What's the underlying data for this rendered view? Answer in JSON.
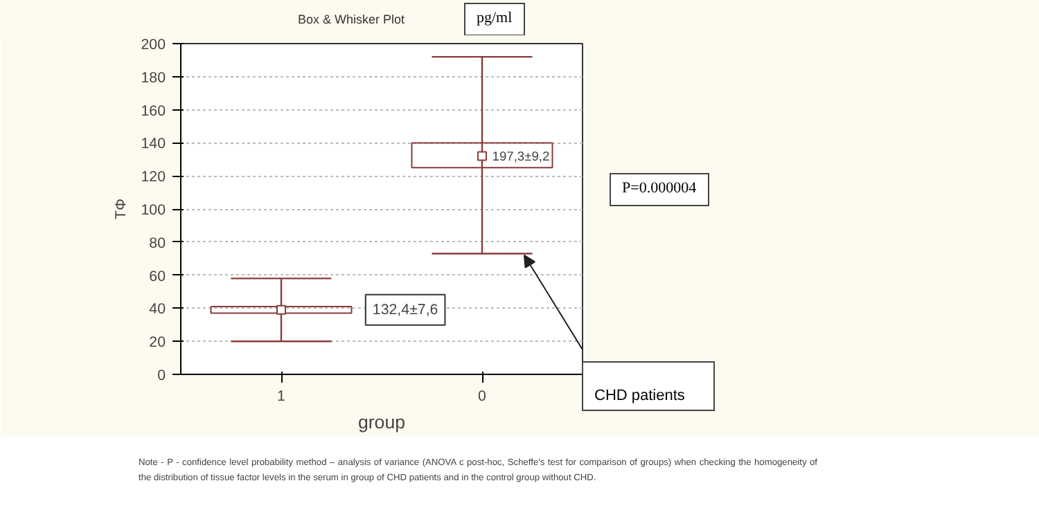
{
  "chart_data": {
    "type": "box",
    "title": "Box & Whisker Plot",
    "xlabel": "group",
    "ylabel": "TΦ",
    "categories": [
      "1",
      "0"
    ],
    "boxes": [
      {
        "low": 20,
        "q1": 37,
        "median": 39,
        "q3": 41,
        "high": 58
      },
      {
        "low": 73,
        "q1": 125,
        "median": 132,
        "q3": 140,
        "high": 192
      }
    ],
    "color": "#8b3a3a",
    "ylim": [
      0,
      200
    ],
    "yticks": [
      0,
      20,
      40,
      60,
      80,
      100,
      120,
      140,
      160,
      180,
      200
    ],
    "grid": "y",
    "annotations": [
      "132,4±7,6",
      "197,3±9,2",
      "pg/ml",
      "P=0.000004",
      "CHD patients",
      "Note - P - confidence level probability method – analysis of variance (ANOVA c post-hoc, Scheffe's test for comparison of groups) when checking the homogeneity of the distribution of tissue factor levels in the serum in group of CHD patients and in the control group without CHD."
    ]
  }
}
